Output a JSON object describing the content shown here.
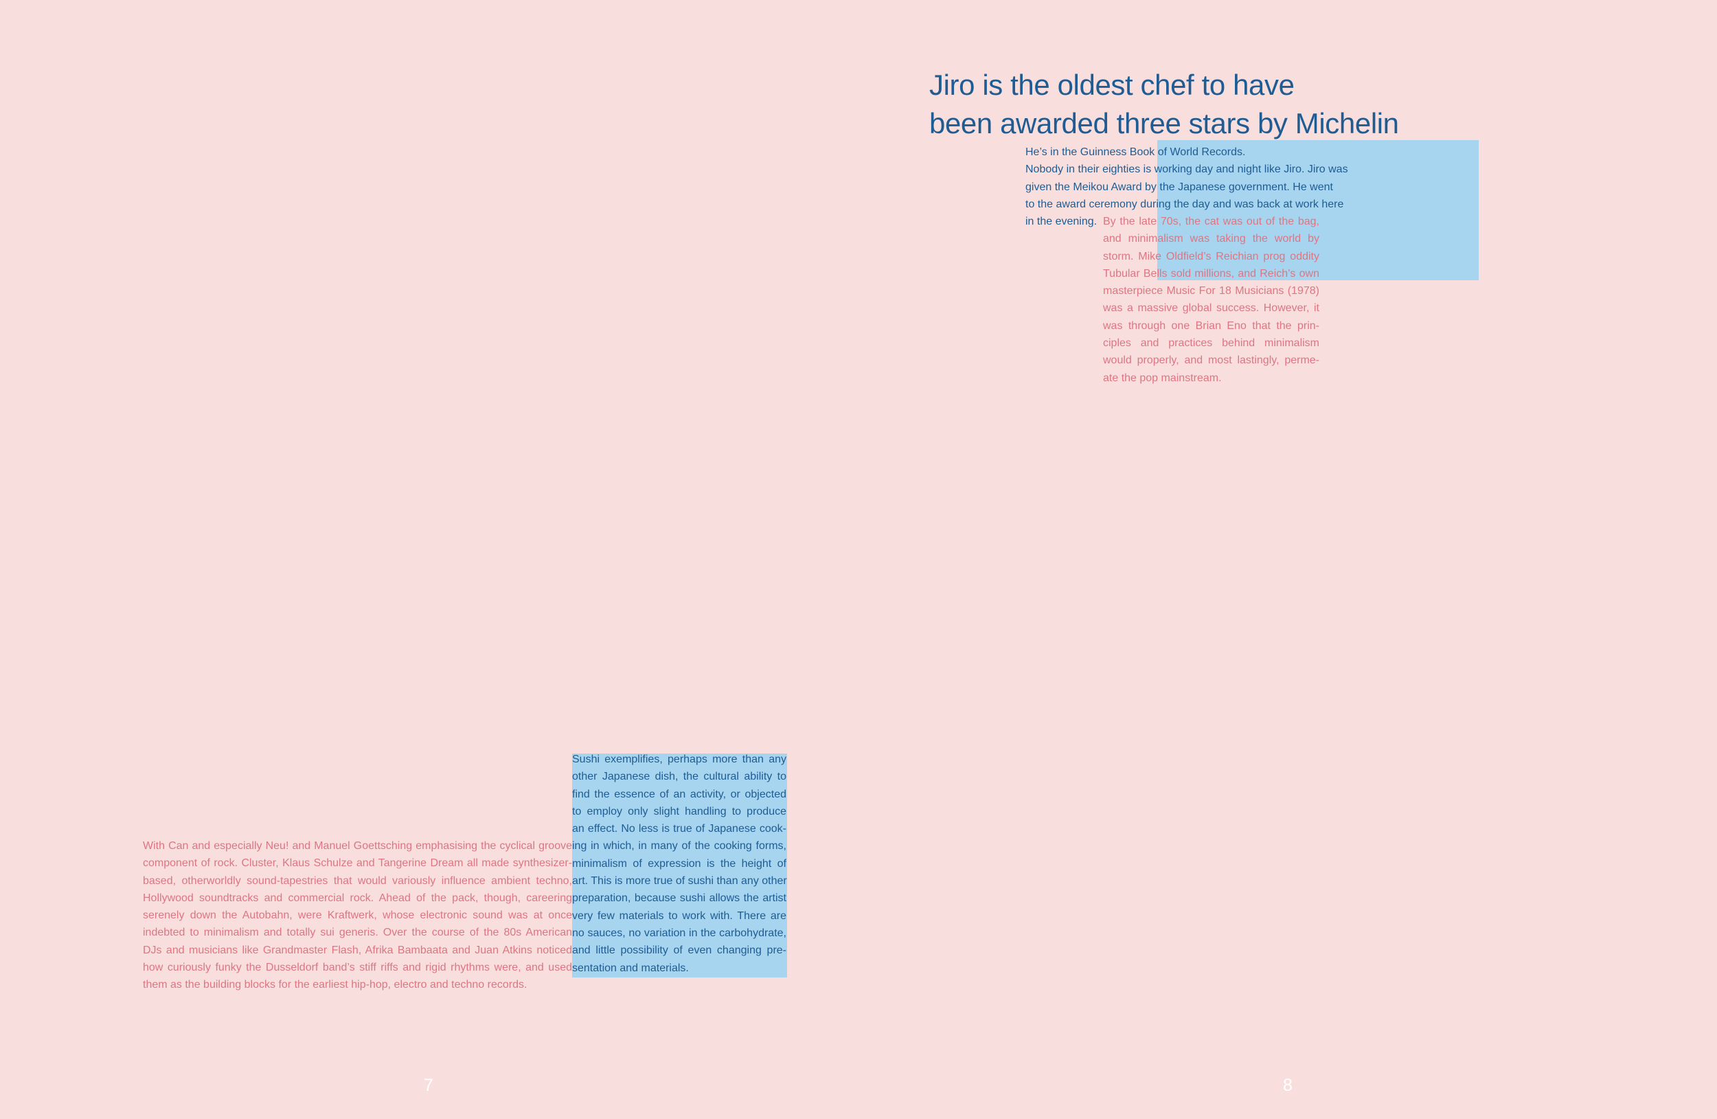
{
  "page": {
    "background": "#f8dfde",
    "accent_blue": "#1e5c93",
    "accent_pink": "#dd7582",
    "highlight_block": "#a7d5ef"
  },
  "headline": {
    "line1": "Jiro is the oldest chef to have",
    "line2": "been awarded three stars by Michelin"
  },
  "jiro_paragraph": {
    "lines": [
      "He’s in the Guinness Book of World Records.",
      "Nobody in their eighties is working day and night like Jiro. Jiro was",
      "given the Meikou Award by the Japanese government. He went",
      "to the award ceremony during the day and was back at work here",
      "in the evening."
    ]
  },
  "late70s_paragraph": {
    "lines": [
      "By the late 70s, the cat was out of the bag,",
      "and minimalism was taking the world by",
      "storm. Mike Oldfield’s Reichian prog oddity",
      "Tubular Bells sold millions, and Reich’s own",
      "masterpiece Music For 18 Musicians (1978)",
      "was a massive global success. However, it",
      "was through one Brian Eno that the prin-",
      "ciples and practices behind minimalism",
      "would properly, and most lastingly, perme-",
      "ate the pop mainstream."
    ]
  },
  "sushi_paragraph": {
    "lines": [
      "Sushi exemplifies, perhaps more than any",
      "other Japanese dish, the cultural ability to",
      "find the essence of an activity, or objected",
      "to employ only slight handling to produce",
      "an effect. No less is true of Japanese cook-",
      "ing in which, in many of the cooking forms,",
      "minimalism of expression is the height of",
      "art.  This is more true of sushi than any other",
      "preparation, because sushi allows the artist",
      "very few materials to work with.  There are",
      "no sauces, no variation in the carbohydrate,",
      "and little possibility of even changing pre-",
      "sentation and materials."
    ]
  },
  "can_paragraph": {
    "lines": [
      "With Can and especially Neu! and Manuel Goettsching emphasising the cyclical groove",
      "component of rock. Cluster, Klaus Schulze and Tangerine Dream all made synthesizer-",
      "based, otherworldly sound-tapestries that would variously influence ambient techno,",
      "Hollywood soundtracks and commercial rock. Ahead of the pack, though, careering",
      "serenely down the Autobahn, were Kraftwerk, whose electronic sound was at once",
      "indebted to minimalism and totally sui generis. Over the course of the 80s American",
      "DJs and musicians like Grandmaster Flash, Afrika Bambaata and Juan Atkins noticed",
      "how curiously funky the Dusseldorf band’s stiff riffs and rigid rhythms were, and used",
      "them as the building blocks for the earliest hip-hop, electro and techno records."
    ]
  },
  "page_numbers": {
    "left": "7",
    "right": "8"
  }
}
